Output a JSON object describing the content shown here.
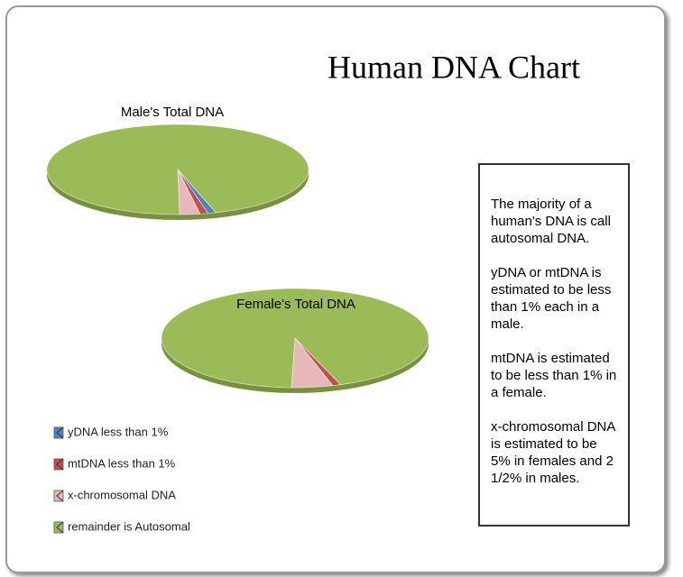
{
  "title": "Human DNA Chart",
  "chart_data": [
    {
      "type": "pie",
      "title": "Male's Total DNA",
      "categories": [
        "yDNA less than 1%",
        "mtDNA less than 1%",
        "x-chromosomal DNA",
        "remainder is Autosomal"
      ],
      "values": [
        1,
        1,
        2.5,
        95.5
      ],
      "colors": [
        "#4f81bd",
        "#c0504d",
        "#e6b9b8",
        "#9bbb59"
      ]
    },
    {
      "type": "pie",
      "title": "Female's Total DNA",
      "categories": [
        "yDNA less than 1%",
        "mtDNA less than 1%",
        "x-chromosomal DNA",
        "remainder is Autosomal"
      ],
      "values": [
        0,
        1,
        5,
        94
      ],
      "colors": [
        "#4f81bd",
        "#c0504d",
        "#e6b9b8",
        "#9bbb59"
      ]
    }
  ],
  "note": [
    "The majority of a human's DNA is call autosomal DNA.",
    "yDNA or mtDNA is estimated to be less than 1% each in a male.",
    "mtDNA is estimated to be less than 1% in a female.",
    "x-chromosomal DNA is estimated to be 5% in females and 2 1/2% in males."
  ]
}
